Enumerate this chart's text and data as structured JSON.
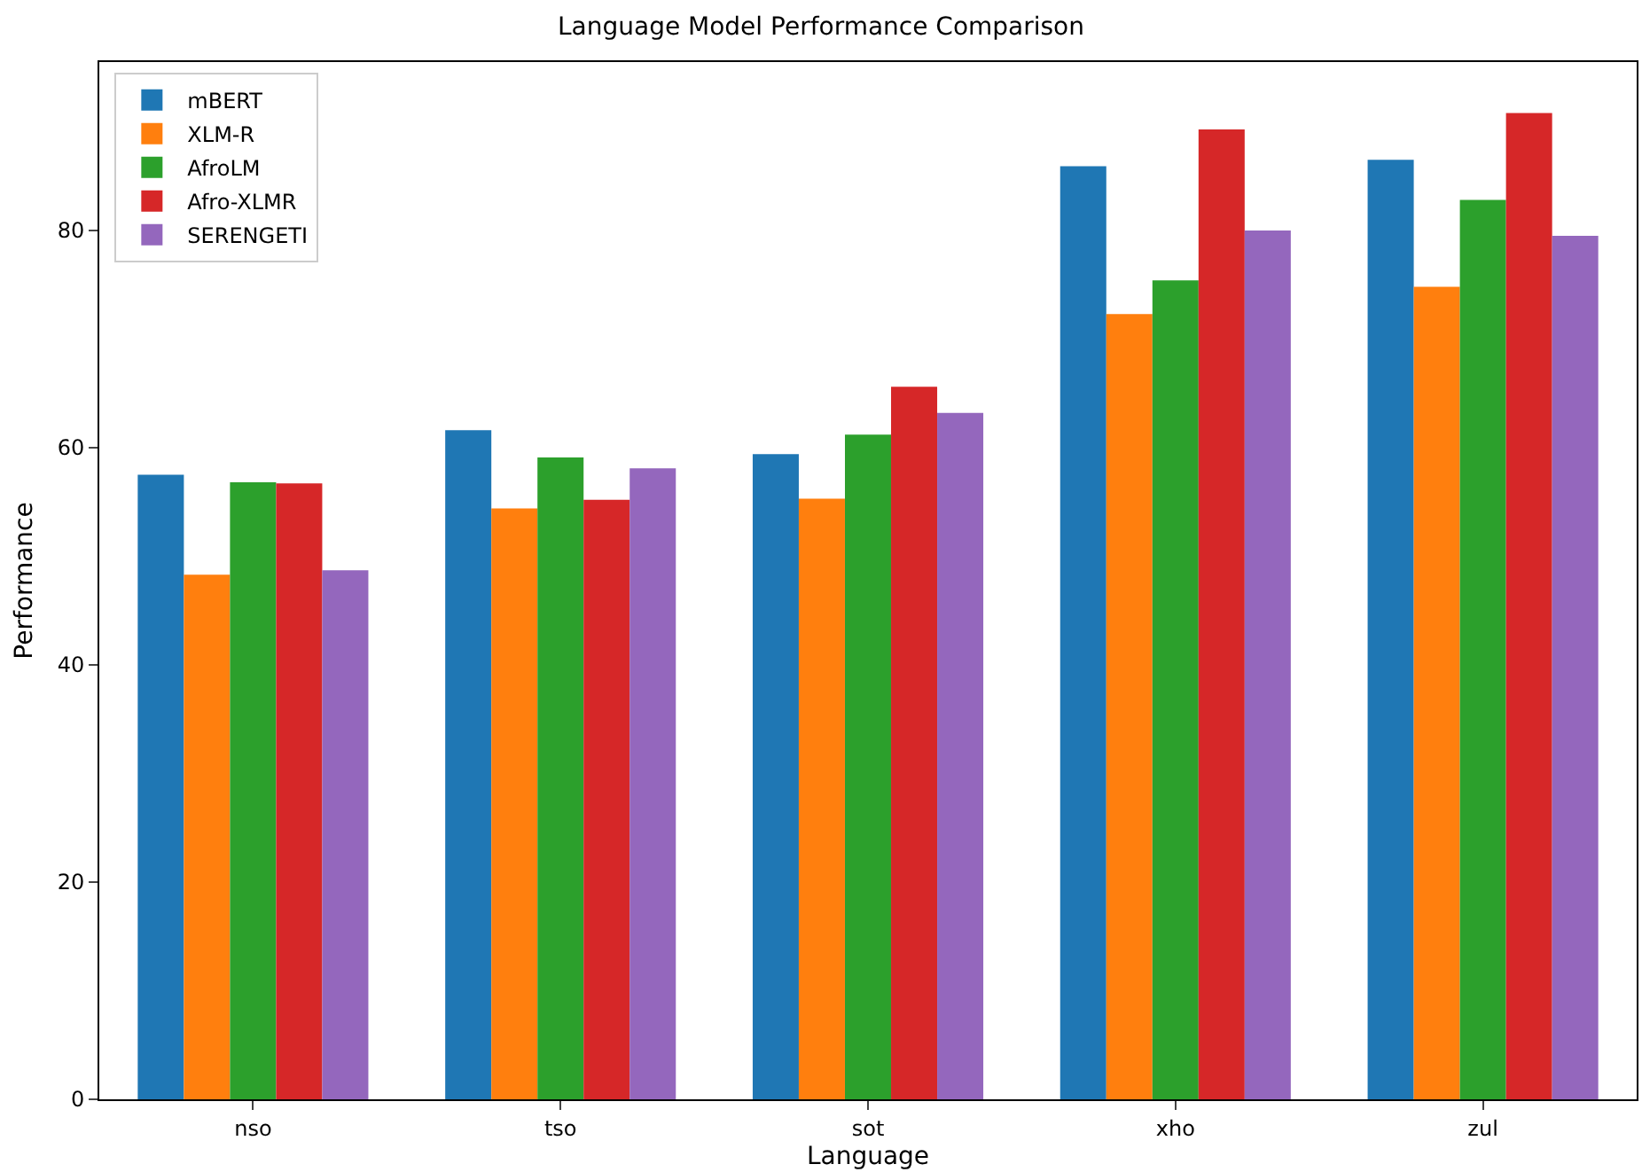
{
  "chart_data": {
    "type": "bar",
    "title": "Language Model Performance Comparison",
    "xlabel": "Language",
    "ylabel": "Performance",
    "categories": [
      "nso",
      "tso",
      "sot",
      "xho",
      "zul"
    ],
    "series": [
      {
        "name": "mBERT",
        "color": "#1f77b4",
        "values": [
          57.5,
          61.6,
          59.4,
          85.9,
          86.5
        ]
      },
      {
        "name": "XLM-R",
        "color": "#ff7f0e",
        "values": [
          48.3,
          54.4,
          55.3,
          72.3,
          74.8
        ]
      },
      {
        "name": "AfroLM",
        "color": "#2ca02c",
        "values": [
          56.8,
          59.1,
          61.2,
          75.4,
          82.8
        ]
      },
      {
        "name": "Afro-XLMR",
        "color": "#d62728",
        "values": [
          56.7,
          55.2,
          65.6,
          89.3,
          90.8
        ]
      },
      {
        "name": "SERENGETI",
        "color": "#9467bd",
        "values": [
          48.7,
          58.1,
          63.2,
          80.0,
          79.5
        ]
      }
    ],
    "ylim": [
      0,
      95.5
    ],
    "yticks": [
      0,
      20,
      40,
      60,
      80
    ],
    "grid": false,
    "legend": "top left"
  }
}
